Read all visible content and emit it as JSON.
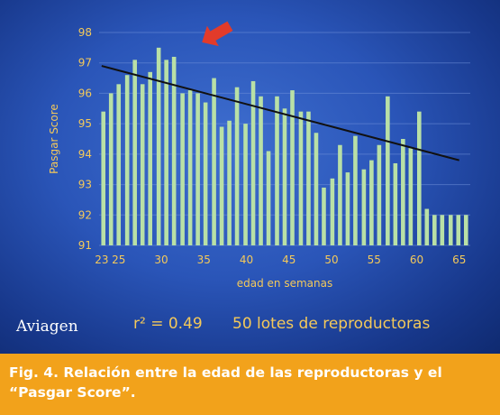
{
  "brand": "Aviagen",
  "stats": {
    "r2_label": "r² = 0.49",
    "lots_label": "50 lotes de reproductoras"
  },
  "caption": "Fig. 4. Relación entre la edad de las reproductoras y el “Pasgar Score”.",
  "colors": {
    "bar": "#b9e0a6",
    "text": "#f4c95a",
    "trend": "#111111",
    "arrow": "#e23b2a",
    "frame": "#f2a21b"
  },
  "chart_data": {
    "type": "bar",
    "xlabel": "edad en semanas",
    "ylabel": "Pasgar Score",
    "ylim": [
      91,
      98
    ],
    "xlim": [
      22.7,
      66.3
    ],
    "yticks": [
      91,
      92,
      93,
      94,
      95,
      96,
      97,
      98
    ],
    "xticks": [
      23,
      25,
      30,
      35,
      40,
      45,
      50,
      55,
      60,
      65
    ],
    "grid": true,
    "x": [
      23.2,
      24.1,
      25.0,
      26.0,
      26.9,
      27.8,
      28.7,
      29.7,
      30.6,
      31.5,
      32.5,
      33.4,
      34.3,
      35.2,
      36.2,
      37.1,
      38.0,
      38.9,
      39.9,
      40.8,
      41.7,
      42.6,
      43.6,
      44.5,
      45.4,
      46.4,
      47.3,
      48.2,
      49.1,
      50.1,
      51.0,
      51.9,
      52.8,
      53.8,
      54.7,
      55.6,
      56.6,
      57.5,
      58.4,
      59.3,
      60.3,
      61.2,
      62.1,
      63.0,
      64.0,
      64.9,
      65.8
    ],
    "values": [
      95.4,
      96.0,
      96.3,
      96.6,
      97.1,
      96.3,
      96.7,
      97.5,
      97.1,
      97.2,
      96.0,
      96.1,
      96.0,
      95.7,
      96.5,
      94.9,
      95.1,
      96.2,
      95.0,
      96.4,
      95.9,
      94.1,
      95.9,
      95.5,
      96.1,
      95.4,
      95.4,
      94.7,
      92.9,
      93.2,
      94.3,
      93.4,
      94.6,
      93.5,
      93.8,
      94.3,
      95.9,
      93.7,
      94.5,
      94.2,
      95.4,
      92.2,
      92.0,
      92.0,
      92.0,
      92.0,
      92.0
    ],
    "trendline": {
      "x": [
        23,
        65
      ],
      "y": [
        96.9,
        93.8
      ]
    },
    "annotations": [
      {
        "type": "arrow",
        "target_x": 35,
        "target_y": 97.5
      }
    ]
  }
}
